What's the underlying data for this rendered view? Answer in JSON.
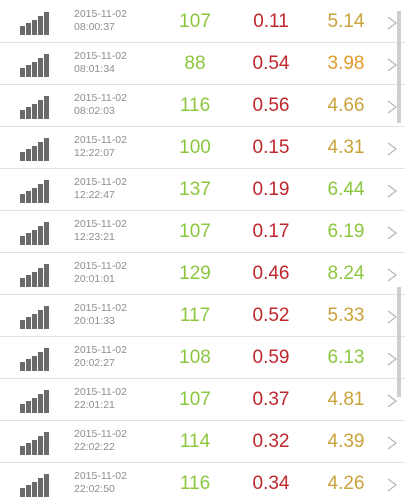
{
  "colors": {
    "green": "#8cc63f",
    "red": "#c0272d",
    "amber": "#c9a23a",
    "timestamp": "#8e8e8e",
    "icon": "#6a6a6a"
  },
  "icons": {
    "signal": "signal-bars-icon",
    "chevron": "chevron-right-icon"
  },
  "rows": [
    {
      "date": "2015-11-02",
      "time": "08:00:37",
      "v1": "107",
      "v2": "0.11",
      "v3": "5.14",
      "c1": "#8cc63f",
      "c2": "#c0272d",
      "c3": "#c9a23a"
    },
    {
      "date": "2015-11-02",
      "time": "08:01:34",
      "v1": "88",
      "v2": "0.54",
      "v3": "3.98",
      "c1": "#8cc63f",
      "c2": "#c0272d",
      "c3": "#e29b2e"
    },
    {
      "date": "2015-11-02",
      "time": "08:02:03",
      "v1": "116",
      "v2": "0.56",
      "v3": "4.66",
      "c1": "#8cc63f",
      "c2": "#c0272d",
      "c3": "#c9a23a"
    },
    {
      "date": "2015-11-02",
      "time": "12:22:07",
      "v1": "100",
      "v2": "0.15",
      "v3": "4.31",
      "c1": "#8cc63f",
      "c2": "#c0272d",
      "c3": "#c9a23a"
    },
    {
      "date": "2015-11-02",
      "time": "12:22:47",
      "v1": "137",
      "v2": "0.19",
      "v3": "6.44",
      "c1": "#8cc63f",
      "c2": "#c0272d",
      "c3": "#8cc63f"
    },
    {
      "date": "2015-11-02",
      "time": "12:23:21",
      "v1": "107",
      "v2": "0.17",
      "v3": "6.19",
      "c1": "#8cc63f",
      "c2": "#c0272d",
      "c3": "#8cc63f"
    },
    {
      "date": "2015-11-02",
      "time": "20:01:01",
      "v1": "129",
      "v2": "0.46",
      "v3": "8.24",
      "c1": "#8cc63f",
      "c2": "#c0272d",
      "c3": "#8cc63f"
    },
    {
      "date": "2015-11-02",
      "time": "20:01:33",
      "v1": "117",
      "v2": "0.52",
      "v3": "5.33",
      "c1": "#8cc63f",
      "c2": "#c0272d",
      "c3": "#c9a23a"
    },
    {
      "date": "2015-11-02",
      "time": "20:02:27",
      "v1": "108",
      "v2": "0.59",
      "v3": "6.13",
      "c1": "#8cc63f",
      "c2": "#c0272d",
      "c3": "#8cc63f"
    },
    {
      "date": "2015-11-02",
      "time": "22:01:21",
      "v1": "107",
      "v2": "0.37",
      "v3": "4.81",
      "c1": "#8cc63f",
      "c2": "#c0272d",
      "c3": "#c9a23a"
    },
    {
      "date": "2015-11-02",
      "time": "22:02:22",
      "v1": "114",
      "v2": "0.32",
      "v3": "4.39",
      "c1": "#8cc63f",
      "c2": "#c0272d",
      "c3": "#c9a23a"
    },
    {
      "date": "2015-11-02",
      "time": "22:02:50",
      "v1": "116",
      "v2": "0.34",
      "v3": "4.26",
      "c1": "#8cc63f",
      "c2": "#c0272d",
      "c3": "#c9a23a"
    }
  ]
}
